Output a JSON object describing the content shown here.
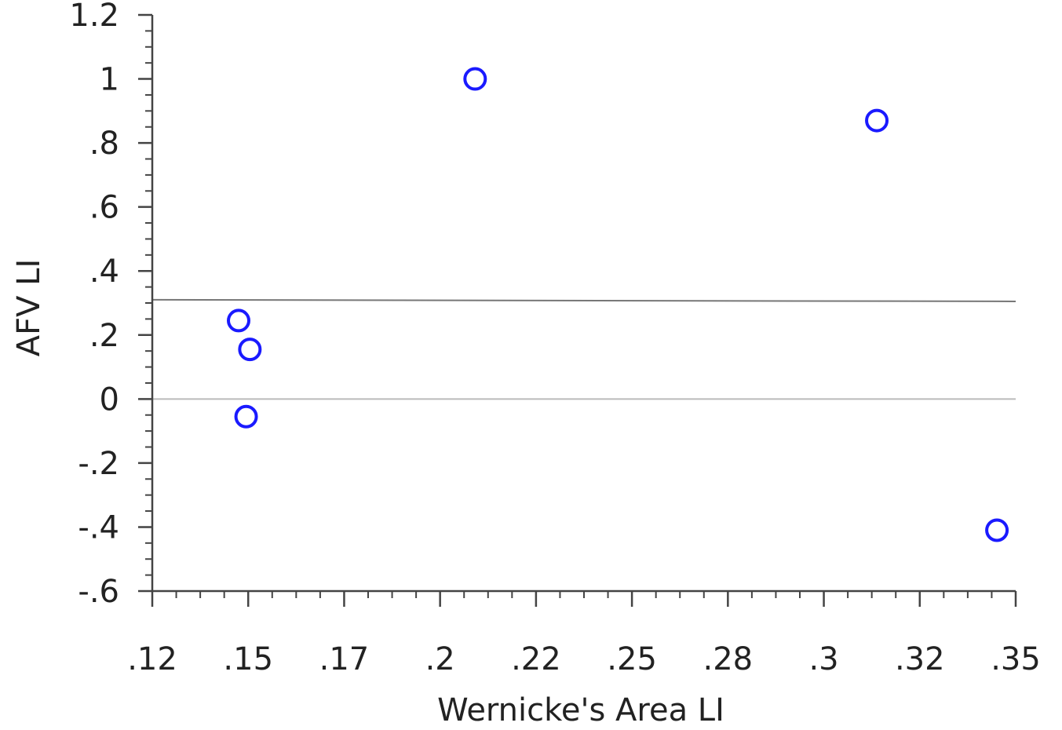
{
  "chart_data": {
    "type": "scatter",
    "title": "",
    "xlabel": "Wernicke's Area LI",
    "ylabel": "AFV LI",
    "xlim": [
      0.12,
      0.35
    ],
    "ylim": [
      -0.6,
      1.2
    ],
    "x_tick_labels": [
      ".12",
      ".15",
      ".17",
      ".2",
      ".22",
      ".25",
      ".28",
      ".3",
      ".32",
      ".35"
    ],
    "y_tick_labels": [
      "1.2",
      "1",
      ".8",
      ".6",
      ".4",
      ".2",
      "0",
      "-.2",
      "-.4",
      "-.6"
    ],
    "series": [
      {
        "points": [
          {
            "x": 0.143,
            "y": 0.245
          },
          {
            "x": 0.146,
            "y": 0.155
          },
          {
            "x": 0.145,
            "y": -0.055
          },
          {
            "x": 0.206,
            "y": 1.0
          },
          {
            "x": 0.313,
            "y": 0.87
          },
          {
            "x": 0.345,
            "y": -0.41
          }
        ],
        "marker": "open-circle",
        "color": "#1a1aff"
      }
    ],
    "reference_lines": [
      {
        "orientation": "horizontal",
        "y_start": 0.31,
        "y_end": 0.305,
        "color": "#777777"
      },
      {
        "orientation": "horizontal",
        "y_start": 0.0,
        "y_end": 0.0,
        "color": "#bbbbbb"
      }
    ],
    "grid": false,
    "legend": "none"
  }
}
